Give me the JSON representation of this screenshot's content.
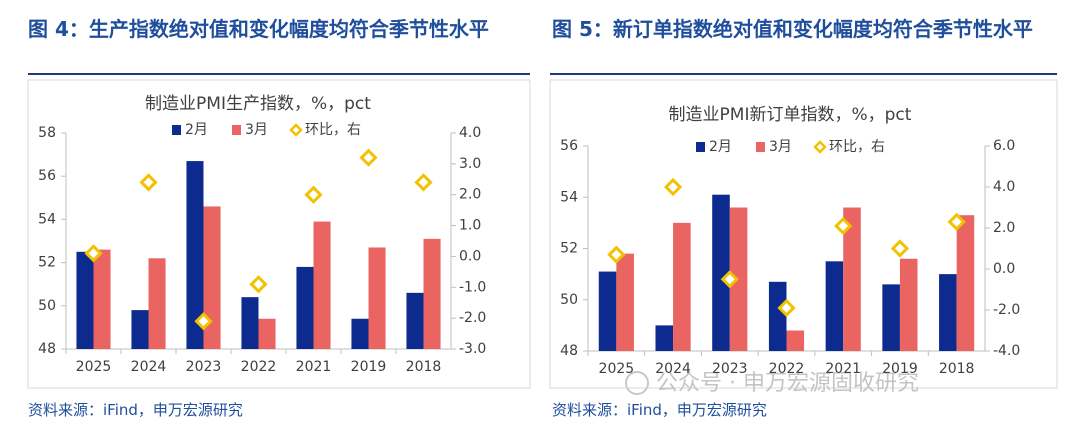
{
  "chart_data": [
    {
      "type": "bar",
      "figure_title": "图 4：生产指数绝对值和变化幅度均符合季节性水平",
      "source": "资料来源：iFind，申万宏源研究",
      "title": "制造业PMI生产指数，%，pct",
      "categories": [
        "2025",
        "2024",
        "2023",
        "2022",
        "2021",
        "2019",
        "2018"
      ],
      "series": [
        {
          "name": "2月",
          "color": "#0d2a8f",
          "values": [
            52.5,
            49.8,
            56.7,
            50.4,
            51.8,
            49.4,
            50.6
          ]
        },
        {
          "name": "3月",
          "color": "#ea6461",
          "values": [
            52.6,
            52.2,
            54.6,
            49.4,
            53.9,
            52.7,
            53.1
          ]
        },
        {
          "name": "环比，右",
          "color": "#f2c200",
          "axis": "y2",
          "marker": "diamond",
          "values": [
            0.1,
            2.4,
            -2.1,
            -0.9,
            2.0,
            3.2,
            2.4
          ]
        }
      ],
      "ylim": [
        48,
        58
      ],
      "yticks": [
        48,
        50,
        52,
        54,
        56,
        58
      ],
      "y2lim": [
        -3,
        4
      ],
      "y2ticks": [
        {
          "value": -3,
          "label": "-3.0"
        },
        {
          "value": -2,
          "label": "-2.0"
        },
        {
          "value": -1,
          "label": "-1.0"
        },
        {
          "value": 0,
          "label": "0.0"
        },
        {
          "value": 1,
          "label": "1.0"
        },
        {
          "value": 2,
          "label": "2.0"
        },
        {
          "value": 3,
          "label": "3.0"
        },
        {
          "value": 4,
          "label": "4.0"
        }
      ]
    },
    {
      "type": "bar",
      "figure_title": "图 5：新订单指数绝对值和变化幅度均符合季节性水平",
      "source": "资料来源：iFind，申万宏源研究",
      "title": "制造业PMI新订单指数，%，pct",
      "categories": [
        "2025",
        "2024",
        "2023",
        "2022",
        "2021",
        "2019",
        "2018"
      ],
      "series": [
        {
          "name": "2月",
          "color": "#0d2a8f",
          "values": [
            51.1,
            49.0,
            54.1,
            50.7,
            51.5,
            50.6,
            51.0
          ]
        },
        {
          "name": "3月",
          "color": "#ea6461",
          "values": [
            51.8,
            53.0,
            53.6,
            48.8,
            53.6,
            51.6,
            53.3
          ]
        },
        {
          "name": "环比，右",
          "color": "#f2c200",
          "axis": "y2",
          "marker": "diamond",
          "values": [
            0.7,
            4.0,
            -0.5,
            -1.9,
            2.1,
            1.0,
            2.3
          ]
        }
      ],
      "ylim": [
        48,
        56
      ],
      "yticks": [
        48,
        50,
        52,
        54,
        56
      ],
      "y2lim": [
        -4,
        6
      ],
      "y2ticks": [
        {
          "value": -4,
          "label": "-4.0"
        },
        {
          "value": -2,
          "label": "-2.0"
        },
        {
          "value": 0,
          "label": "0.0"
        },
        {
          "value": 2,
          "label": "2.0"
        },
        {
          "value": 4,
          "label": "4.0"
        },
        {
          "value": 6,
          "label": "6.0"
        }
      ]
    }
  ],
  "watermark": "公众号 · 申万宏源固收研究"
}
